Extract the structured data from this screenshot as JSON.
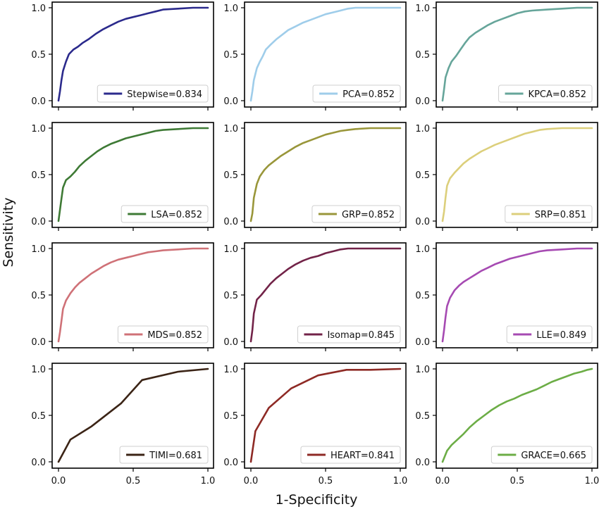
{
  "figure": {
    "xlabel": "1-Specificity",
    "ylabel": "Sensitivity",
    "x_ticks": [
      "0.0",
      "0.5",
      "1.0"
    ],
    "y_ticks": [
      "0.0",
      "0.5",
      "1.0"
    ]
  },
  "chart_data": [
    {
      "type": "line",
      "legend": "Stepwise=0.834",
      "color": "#2b2a8c",
      "legend_position": "bottom-right",
      "xlim": [
        0,
        1
      ],
      "ylim": [
        0,
        1
      ],
      "x": [
        0,
        0.01,
        0.02,
        0.03,
        0.05,
        0.07,
        0.1,
        0.13,
        0.16,
        0.2,
        0.25,
        0.3,
        0.35,
        0.4,
        0.45,
        0.5,
        0.55,
        0.6,
        0.65,
        0.7,
        0.8,
        0.9,
        1.0
      ],
      "y": [
        0,
        0.1,
        0.22,
        0.32,
        0.42,
        0.5,
        0.55,
        0.58,
        0.62,
        0.66,
        0.72,
        0.77,
        0.81,
        0.85,
        0.88,
        0.9,
        0.92,
        0.94,
        0.96,
        0.98,
        0.99,
        1.0,
        1.0
      ]
    },
    {
      "type": "line",
      "legend": "PCA=0.852",
      "color": "#9fcdea",
      "legend_position": "bottom-right",
      "xlim": [
        0,
        1
      ],
      "ylim": [
        0,
        1
      ],
      "x": [
        0,
        0.01,
        0.02,
        0.04,
        0.06,
        0.08,
        0.1,
        0.13,
        0.17,
        0.21,
        0.25,
        0.3,
        0.35,
        0.4,
        0.45,
        0.5,
        0.55,
        0.6,
        0.65,
        0.7,
        0.8,
        1.0
      ],
      "y": [
        0,
        0.1,
        0.22,
        0.35,
        0.42,
        0.48,
        0.55,
        0.6,
        0.66,
        0.71,
        0.76,
        0.8,
        0.84,
        0.87,
        0.9,
        0.93,
        0.95,
        0.97,
        0.99,
        1.0,
        1.0,
        1.0
      ]
    },
    {
      "type": "line",
      "legend": "KPCA=0.852",
      "color": "#66a59a",
      "legend_position": "bottom-right",
      "xlim": [
        0,
        1
      ],
      "ylim": [
        0,
        1
      ],
      "x": [
        0,
        0.01,
        0.02,
        0.04,
        0.06,
        0.09,
        0.12,
        0.15,
        0.18,
        0.22,
        0.26,
        0.3,
        0.35,
        0.4,
        0.45,
        0.5,
        0.55,
        0.6,
        0.7,
        0.8,
        0.9,
        1.0
      ],
      "y": [
        0,
        0.12,
        0.25,
        0.35,
        0.42,
        0.48,
        0.55,
        0.62,
        0.68,
        0.73,
        0.77,
        0.81,
        0.85,
        0.88,
        0.91,
        0.94,
        0.96,
        0.97,
        0.98,
        0.99,
        1.0,
        1.0
      ]
    },
    {
      "type": "line",
      "legend": "LSA=0.852",
      "color": "#3e7a35",
      "legend_position": "bottom-right",
      "xlim": [
        0,
        1
      ],
      "ylim": [
        0,
        1
      ],
      "x": [
        0,
        0.01,
        0.02,
        0.03,
        0.05,
        0.08,
        0.11,
        0.14,
        0.18,
        0.22,
        0.26,
        0.3,
        0.35,
        0.4,
        0.45,
        0.5,
        0.55,
        0.6,
        0.65,
        0.7,
        0.8,
        0.9,
        1.0
      ],
      "y": [
        0,
        0.12,
        0.24,
        0.36,
        0.44,
        0.48,
        0.53,
        0.59,
        0.65,
        0.7,
        0.75,
        0.79,
        0.83,
        0.86,
        0.89,
        0.91,
        0.93,
        0.95,
        0.97,
        0.98,
        0.99,
        1.0,
        1.0
      ]
    },
    {
      "type": "line",
      "legend": "GRP=0.852",
      "color": "#99963a",
      "legend_position": "bottom-right",
      "xlim": [
        0,
        1
      ],
      "ylim": [
        0,
        1
      ],
      "x": [
        0,
        0.01,
        0.02,
        0.04,
        0.06,
        0.09,
        0.12,
        0.16,
        0.2,
        0.25,
        0.3,
        0.35,
        0.4,
        0.45,
        0.5,
        0.55,
        0.6,
        0.65,
        0.7,
        0.8,
        1.0
      ],
      "y": [
        0,
        0.08,
        0.25,
        0.4,
        0.48,
        0.55,
        0.6,
        0.65,
        0.7,
        0.75,
        0.8,
        0.84,
        0.87,
        0.9,
        0.93,
        0.95,
        0.97,
        0.98,
        0.99,
        1.0,
        1.0
      ]
    },
    {
      "type": "line",
      "legend": "SRP=0.851",
      "color": "#dccf7b",
      "legend_position": "bottom-right",
      "xlim": [
        0,
        1
      ],
      "ylim": [
        0,
        1
      ],
      "x": [
        0,
        0.01,
        0.02,
        0.03,
        0.05,
        0.08,
        0.11,
        0.14,
        0.18,
        0.22,
        0.26,
        0.3,
        0.35,
        0.4,
        0.45,
        0.5,
        0.55,
        0.6,
        0.65,
        0.7,
        0.8,
        0.9,
        1.0
      ],
      "y": [
        0,
        0.1,
        0.25,
        0.38,
        0.46,
        0.52,
        0.57,
        0.62,
        0.67,
        0.71,
        0.75,
        0.78,
        0.82,
        0.85,
        0.88,
        0.91,
        0.94,
        0.96,
        0.98,
        0.99,
        1.0,
        1.0,
        1.0
      ]
    },
    {
      "type": "line",
      "legend": "MDS=0.852",
      "color": "#cf7177",
      "legend_position": "bottom-right",
      "xlim": [
        0,
        1
      ],
      "ylim": [
        0,
        1
      ],
      "x": [
        0,
        0.01,
        0.02,
        0.03,
        0.05,
        0.08,
        0.11,
        0.14,
        0.18,
        0.22,
        0.26,
        0.3,
        0.35,
        0.4,
        0.45,
        0.5,
        0.55,
        0.6,
        0.65,
        0.7,
        0.8,
        0.9,
        1.0
      ],
      "y": [
        0,
        0.1,
        0.22,
        0.35,
        0.44,
        0.52,
        0.58,
        0.63,
        0.68,
        0.73,
        0.77,
        0.81,
        0.85,
        0.88,
        0.9,
        0.92,
        0.94,
        0.96,
        0.97,
        0.98,
        0.99,
        1.0,
        1.0
      ]
    },
    {
      "type": "line",
      "legend": "Isomap=0.845",
      "color": "#722348",
      "legend_position": "bottom-right",
      "xlim": [
        0,
        1
      ],
      "ylim": [
        0,
        1
      ],
      "x": [
        0,
        0.01,
        0.02,
        0.04,
        0.07,
        0.1,
        0.13,
        0.17,
        0.21,
        0.25,
        0.3,
        0.35,
        0.4,
        0.45,
        0.5,
        0.55,
        0.6,
        0.65,
        0.7,
        0.8,
        1.0
      ],
      "y": [
        0,
        0.12,
        0.3,
        0.45,
        0.5,
        0.56,
        0.62,
        0.68,
        0.73,
        0.78,
        0.83,
        0.87,
        0.9,
        0.92,
        0.95,
        0.97,
        0.99,
        1.0,
        1.0,
        1.0,
        1.0
      ]
    },
    {
      "type": "line",
      "legend": "LLE=0.849",
      "color": "#a64ab2",
      "legend_position": "bottom-right",
      "xlim": [
        0,
        1
      ],
      "ylim": [
        0,
        1
      ],
      "x": [
        0,
        0.01,
        0.02,
        0.03,
        0.05,
        0.08,
        0.11,
        0.14,
        0.18,
        0.22,
        0.26,
        0.3,
        0.35,
        0.4,
        0.45,
        0.5,
        0.55,
        0.6,
        0.65,
        0.7,
        0.8,
        0.9,
        1.0
      ],
      "y": [
        0,
        0.12,
        0.26,
        0.38,
        0.47,
        0.55,
        0.6,
        0.64,
        0.68,
        0.72,
        0.76,
        0.79,
        0.83,
        0.86,
        0.89,
        0.91,
        0.93,
        0.95,
        0.97,
        0.98,
        0.99,
        1.0,
        1.0
      ]
    },
    {
      "type": "line",
      "legend": "TIMI=0.681",
      "color": "#3b2416",
      "legend_position": "bottom-right",
      "xlim": [
        0,
        1
      ],
      "ylim": [
        0,
        1
      ],
      "x": [
        0,
        0.08,
        0.22,
        0.42,
        0.56,
        0.8,
        1.0
      ],
      "y": [
        0,
        0.24,
        0.38,
        0.63,
        0.88,
        0.97,
        1.0
      ]
    },
    {
      "type": "line",
      "legend": "HEART=0.841",
      "color": "#8e2a25",
      "legend_position": "bottom-right",
      "xlim": [
        0,
        1
      ],
      "ylim": [
        0,
        1
      ],
      "x": [
        0,
        0.03,
        0.12,
        0.27,
        0.45,
        0.64,
        0.8,
        1.0
      ],
      "y": [
        0,
        0.33,
        0.58,
        0.79,
        0.93,
        0.99,
        0.99,
        1.0
      ]
    },
    {
      "type": "line",
      "legend": "GRACE=0.665",
      "color": "#6cad46",
      "legend_position": "bottom-right",
      "xlim": [
        0,
        1
      ],
      "ylim": [
        0,
        1
      ],
      "x": [
        0,
        0.03,
        0.06,
        0.1,
        0.14,
        0.18,
        0.23,
        0.28,
        0.33,
        0.38,
        0.43,
        0.48,
        0.53,
        0.58,
        0.63,
        0.68,
        0.73,
        0.78,
        0.83,
        0.88,
        0.93,
        0.97,
        1.0
      ],
      "y": [
        0,
        0.12,
        0.18,
        0.24,
        0.3,
        0.37,
        0.44,
        0.5,
        0.56,
        0.61,
        0.65,
        0.68,
        0.72,
        0.75,
        0.78,
        0.82,
        0.86,
        0.89,
        0.92,
        0.95,
        0.97,
        0.99,
        1.0
      ]
    }
  ]
}
